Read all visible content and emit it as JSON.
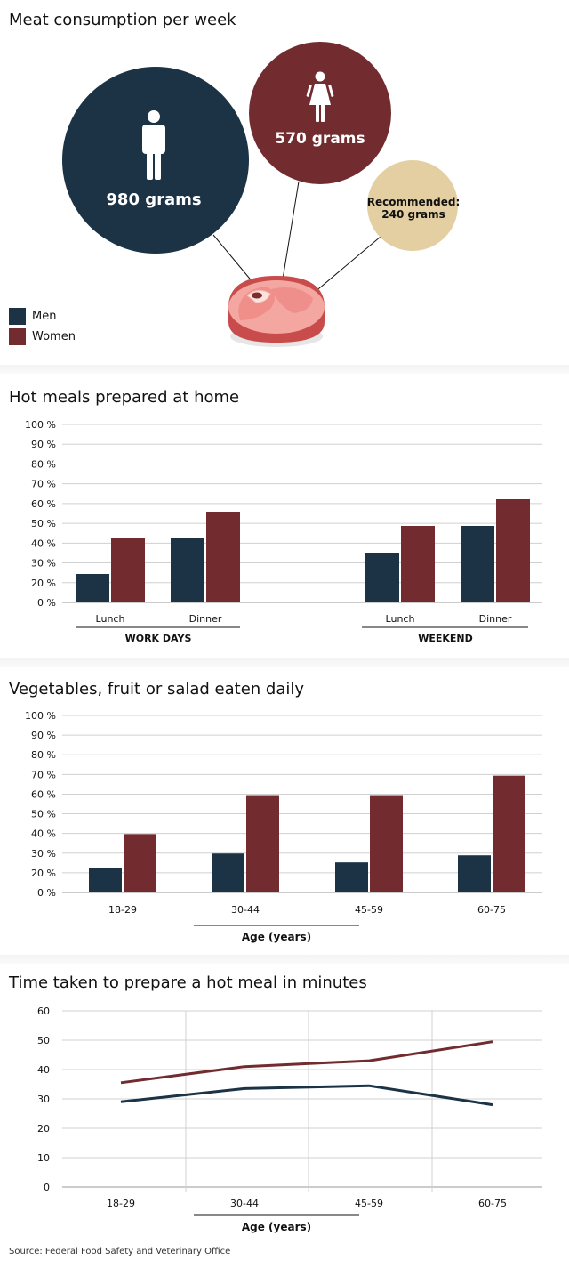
{
  "colors": {
    "men": "#1b3345",
    "women": "#722c30",
    "recommended": "#e3ceA1",
    "grid": "#cfcfcf"
  },
  "section1": {
    "title": "Meat consumption per week",
    "men_label": "980 grams",
    "women_label": "570 grams",
    "recommended_line1": "Recommended:",
    "recommended_line2": "240 grams",
    "legend": {
      "men": "Men",
      "women": "Women"
    }
  },
  "section2": {
    "title": "Hot meals prepared at home",
    "group1": "WORK DAYS",
    "group2": "WEEKEND"
  },
  "section3": {
    "title": "Vegetables, fruit or salad eaten daily",
    "xaxis": "Age (years)"
  },
  "section4": {
    "title": "Time taken to prepare a hot meal in minutes",
    "xaxis": "Age (years)"
  },
  "source": "Source: Federal Food Safety and Veterinary Office",
  "chart_data": [
    {
      "type": "bubble",
      "title": "Meat consumption per week",
      "series": [
        {
          "name": "Men",
          "value": 980,
          "unit": "grams"
        },
        {
          "name": "Women",
          "value": 570,
          "unit": "grams"
        },
        {
          "name": "Recommended",
          "value": 240,
          "unit": "grams"
        }
      ]
    },
    {
      "type": "bar",
      "title": "Hot meals prepared at home",
      "categories": [
        "Lunch",
        "Dinner",
        "Lunch",
        "Dinner"
      ],
      "groups": [
        "WORK DAYS",
        "WORK DAYS",
        "WEEKEND",
        "WEEKEND"
      ],
      "series": [
        {
          "name": "Men",
          "values": [
            16,
            36,
            28,
            43
          ]
        },
        {
          "name": "Women",
          "values": [
            36,
            51,
            43,
            58
          ]
        }
      ],
      "ylim": [
        0,
        100
      ],
      "yticks": [
        "100 %",
        "90 %",
        "80 %",
        "70 %",
        "60 %",
        "50 %",
        "40 %",
        "30 %",
        "20 %",
        "0 %"
      ]
    },
    {
      "type": "bar",
      "title": "Vegetables, fruit or salad eaten daily",
      "categories": [
        "18-29",
        "30-44",
        "45-59",
        "60-75"
      ],
      "xlabel": "Age (years)",
      "series": [
        {
          "name": "Men",
          "values": [
            14,
            22,
            17,
            21
          ]
        },
        {
          "name": "Women",
          "values": [
            33,
            55,
            55,
            66
          ]
        }
      ],
      "ylim": [
        0,
        100
      ],
      "yticks": [
        "100 %",
        "90 %",
        "80 %",
        "70 %",
        "60 %",
        "50 %",
        "40 %",
        "30 %",
        "20 %",
        "0 %"
      ]
    },
    {
      "type": "line",
      "title": "Time taken to prepare a hot meal in minutes",
      "categories": [
        "18-29",
        "30-44",
        "45-59",
        "60-75"
      ],
      "xlabel": "Age (years)",
      "series": [
        {
          "name": "Men",
          "values": [
            29,
            33.5,
            34.5,
            28
          ]
        },
        {
          "name": "Women",
          "values": [
            35.5,
            41,
            43,
            49.5
          ]
        }
      ],
      "ylim": [
        0,
        60
      ],
      "yticks": [
        "60",
        "50",
        "40",
        "30",
        "20",
        "10",
        "0"
      ]
    }
  ]
}
